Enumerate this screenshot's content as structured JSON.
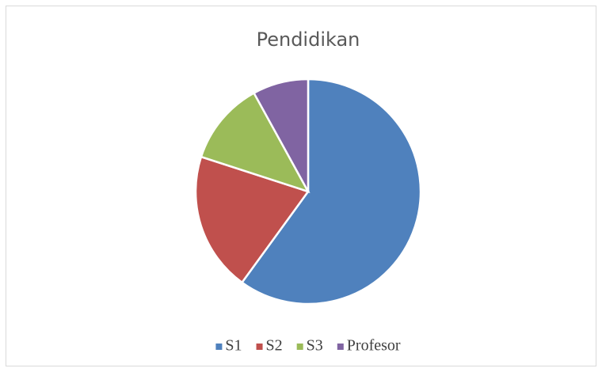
{
  "chart_data": {
    "type": "pie",
    "title": "Pendidikan",
    "categories": [
      "S1",
      "S2",
      "S3",
      "Profesor"
    ],
    "values": [
      60,
      20,
      12,
      8
    ],
    "colors": [
      "#4f81bd",
      "#c0504d",
      "#9bbb59",
      "#8064a2"
    ],
    "legend": "bottom"
  }
}
